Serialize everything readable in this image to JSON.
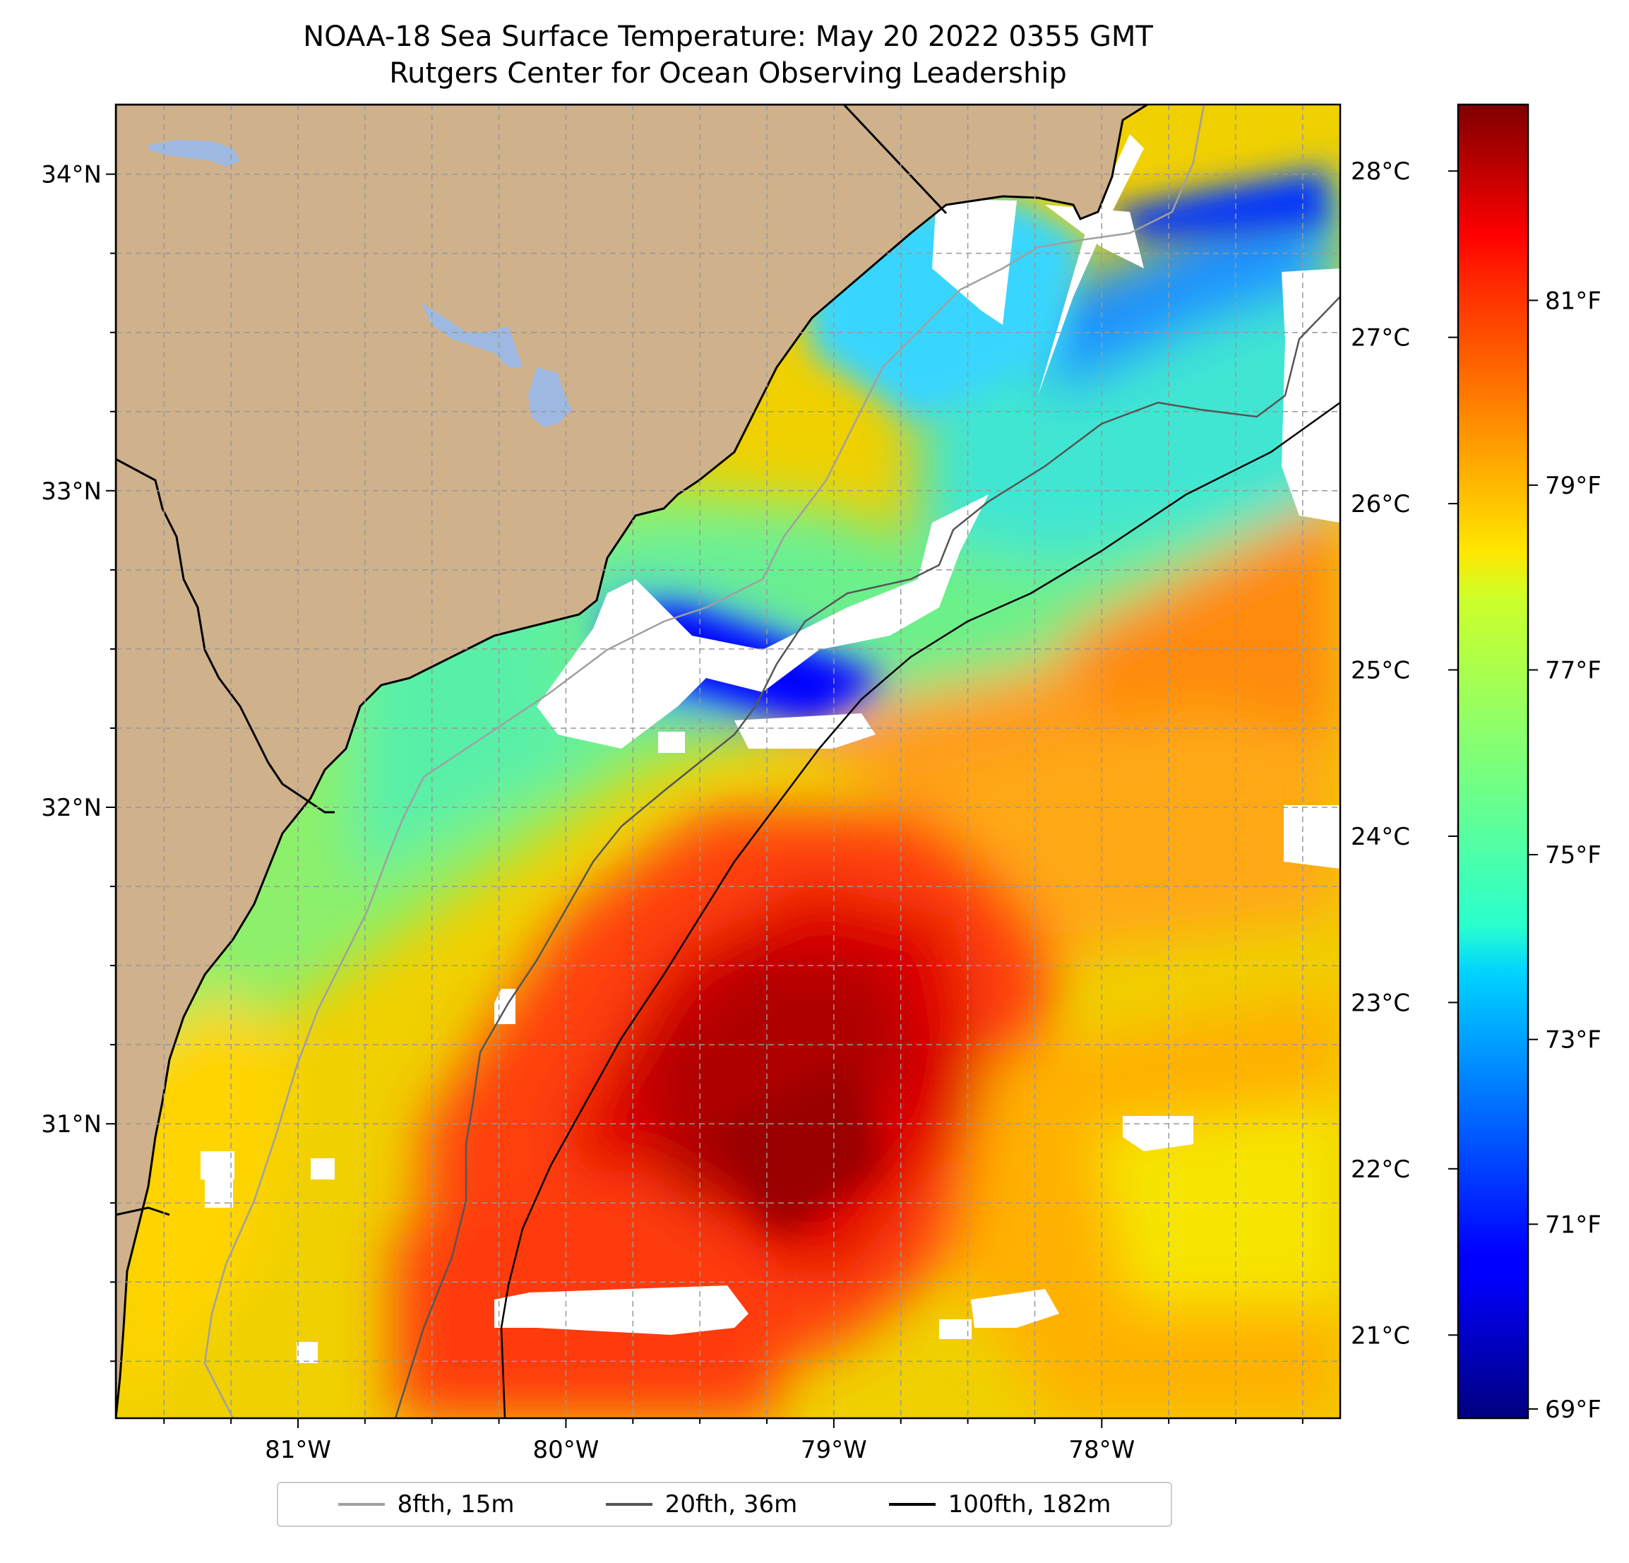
{
  "title": {
    "line1": "NOAA-18 Sea Surface Temperature: May 20 2022 0355 GMT",
    "line2": "Rutgers Center for Ocean Observing Leadership"
  },
  "map": {
    "lon_range": [
      -81.68,
      -77.11
    ],
    "lat_range": [
      30.07,
      34.22
    ],
    "lon_ticks": [
      {
        "value": -81,
        "label": "81°W"
      },
      {
        "value": -80,
        "label": "80°W"
      },
      {
        "value": -79,
        "label": "79°W"
      },
      {
        "value": -78,
        "label": "78°W"
      }
    ],
    "lat_ticks": [
      {
        "value": 31,
        "label": "31°N"
      },
      {
        "value": 32,
        "label": "32°N"
      },
      {
        "value": 33,
        "label": "33°N"
      },
      {
        "value": 34,
        "label": "34°N"
      }
    ],
    "grid": true,
    "land_color": "#cfb18b",
    "water_body_color": "#9db9e2",
    "missing_data_color": "#ffffff"
  },
  "colorbar": {
    "range_celsius": [
      20.5,
      28.4
    ],
    "celsius_ticks": [
      {
        "value": 21,
        "label": "21°C"
      },
      {
        "value": 22,
        "label": "22°C"
      },
      {
        "value": 23,
        "label": "23°C"
      },
      {
        "value": 24,
        "label": "24°C"
      },
      {
        "value": 25,
        "label": "25°C"
      },
      {
        "value": 26,
        "label": "26°C"
      },
      {
        "value": 27,
        "label": "27°C"
      },
      {
        "value": 28,
        "label": "28°C"
      }
    ],
    "fahrenheit_ticks": [
      {
        "value": 69,
        "label": "69°F"
      },
      {
        "value": 71,
        "label": "71°F"
      },
      {
        "value": 73,
        "label": "73°F"
      },
      {
        "value": 75,
        "label": "75°F"
      },
      {
        "value": 77,
        "label": "77°F"
      },
      {
        "value": 79,
        "label": "79°F"
      },
      {
        "value": 81,
        "label": "81°F"
      }
    ],
    "colormap": "jet"
  },
  "legend": {
    "placement": "bottom-center",
    "items": [
      {
        "label": "8fth, 15m",
        "color": "#a0a0a0"
      },
      {
        "label": "20fth, 36m",
        "color": "#555555"
      },
      {
        "label": "100fth, 182m",
        "color": "#000000"
      }
    ]
  }
}
